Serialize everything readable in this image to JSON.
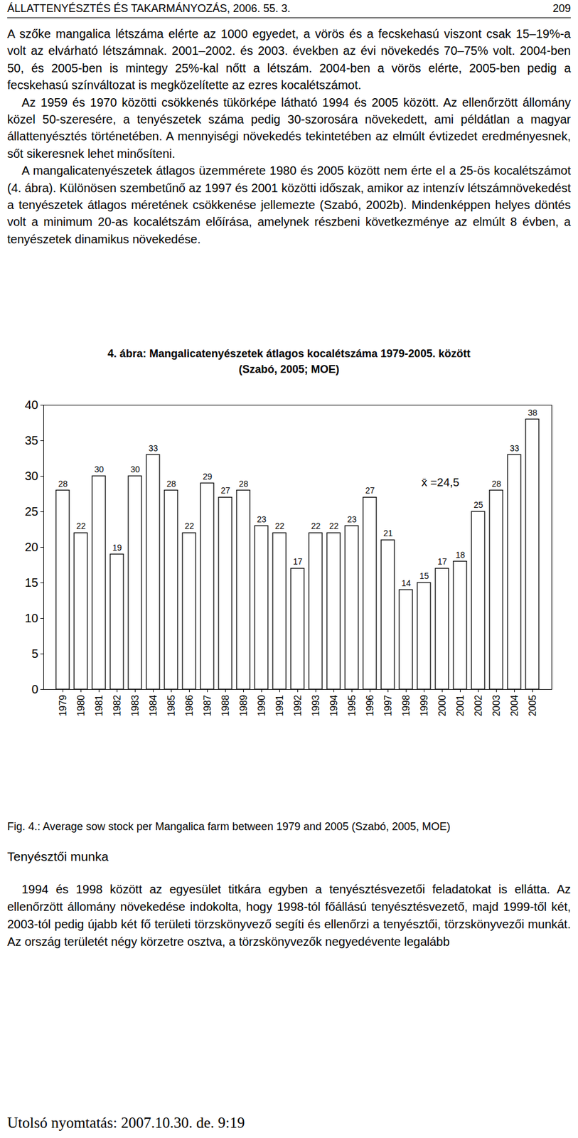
{
  "header": {
    "left": "ÁLLATTENYÉSZTÉS ÉS TAKARMÁNYOZÁS, 2006. 55. 3.",
    "page": "209"
  },
  "paragraphs": [
    "A szőke mangalica létszáma elérte az 1000 egyedet, a vörös és a fecskehasú viszont csak 15–19%-a volt az elvárható létszámnak. 2001–2002. és 2003. években az évi növekedés 70–75% volt. 2004-ben 50, és 2005-ben is mintegy 25%-kal nőtt a létszám. 2004-ben a vörös elérte, 2005-ben pedig a fecskehasú színváltozat is megközelítette az ezres kocalétszámot.",
    "Az 1959 és 1970 közötti csökkenés tükörképe látható 1994 és 2005 között. Az ellenőrzött állomány közel 50-szeresére, a tenyészetek száma pedig 30-szorosára növekedett, ami példátlan a magyar állattenyésztés történetében. A mennyiségi növekedés tekintetében az elmúlt évtizedet eredményesnek, sőt sikeresnek lehet minősíteni.",
    "A mangalicatenyészetek átlagos üzemmérete 1980 és 2005 között nem érte el a 25-ös kocalétszámot (4. ábra). Különösen szembetűnő az 1997 és 2001 közötti időszak, amikor az intenzív létszámnövekedést a tenyészetek átlagos méretének csökkenése jellemezte (Szabó, 2002b). Mindenképpen helyes döntés volt a minimum 20-as kocalétszám előírása, amelynek részbeni következménye az elmúlt 8 évben, a tenyészetek dinamikus növekedése."
  ],
  "chart_data": {
    "type": "bar",
    "title": "4. ábra: Mangalicatenyészetek átlagos kocalétszáma 1979-2005. között",
    "subtitle": "(Szabó, 2005; MOE)",
    "categories": [
      "1979",
      "1980",
      "1981",
      "1982",
      "1983",
      "1984",
      "1985",
      "1986",
      "1987",
      "1988",
      "1989",
      "1990",
      "1991",
      "1992",
      "1993",
      "1994",
      "1995",
      "1996",
      "1997",
      "1998",
      "1999",
      "2000",
      "2001",
      "2002",
      "2003",
      "2004",
      "2005"
    ],
    "values": [
      28,
      22,
      30,
      19,
      30,
      33,
      28,
      22,
      29,
      27,
      28,
      23,
      22,
      17,
      22,
      22,
      23,
      27,
      21,
      14,
      15,
      17,
      18,
      25,
      28,
      33,
      38
    ],
    "color": "#ffffff",
    "ylim": [
      0,
      40
    ],
    "yticks": [
      0,
      5,
      10,
      15,
      20,
      25,
      30,
      35,
      40
    ],
    "grid": false,
    "data_labels": true,
    "annotations": [
      "x̄ =24,5"
    ]
  },
  "figure_caption_en": "Fig. 4.: Average sow stock per Mangalica farm between 1979 and 2005 (Szabó, 2005, MOE)",
  "section_title": "Tenyésztői munka",
  "section_paragraphs": [
    "1994 és 1998 között az egyesület titkára egyben a tenyésztésvezetői feladatokat is ellátta. Az ellenőrzött állomány növekedése indokolta, hogy 1998-tól főállású tenyésztésvezető, majd 1999-től két, 2003-tól pedig újabb két fő területi törzskönyvező segíti és ellenőrzi a tenyésztői, törzskönyvezői munkát. Az ország területét négy körzetre osztva, a törzskönyvezők negyedévente legalább"
  ],
  "footer": "Utolsó nyomtatás: 2007.10.30. de. 9:19"
}
